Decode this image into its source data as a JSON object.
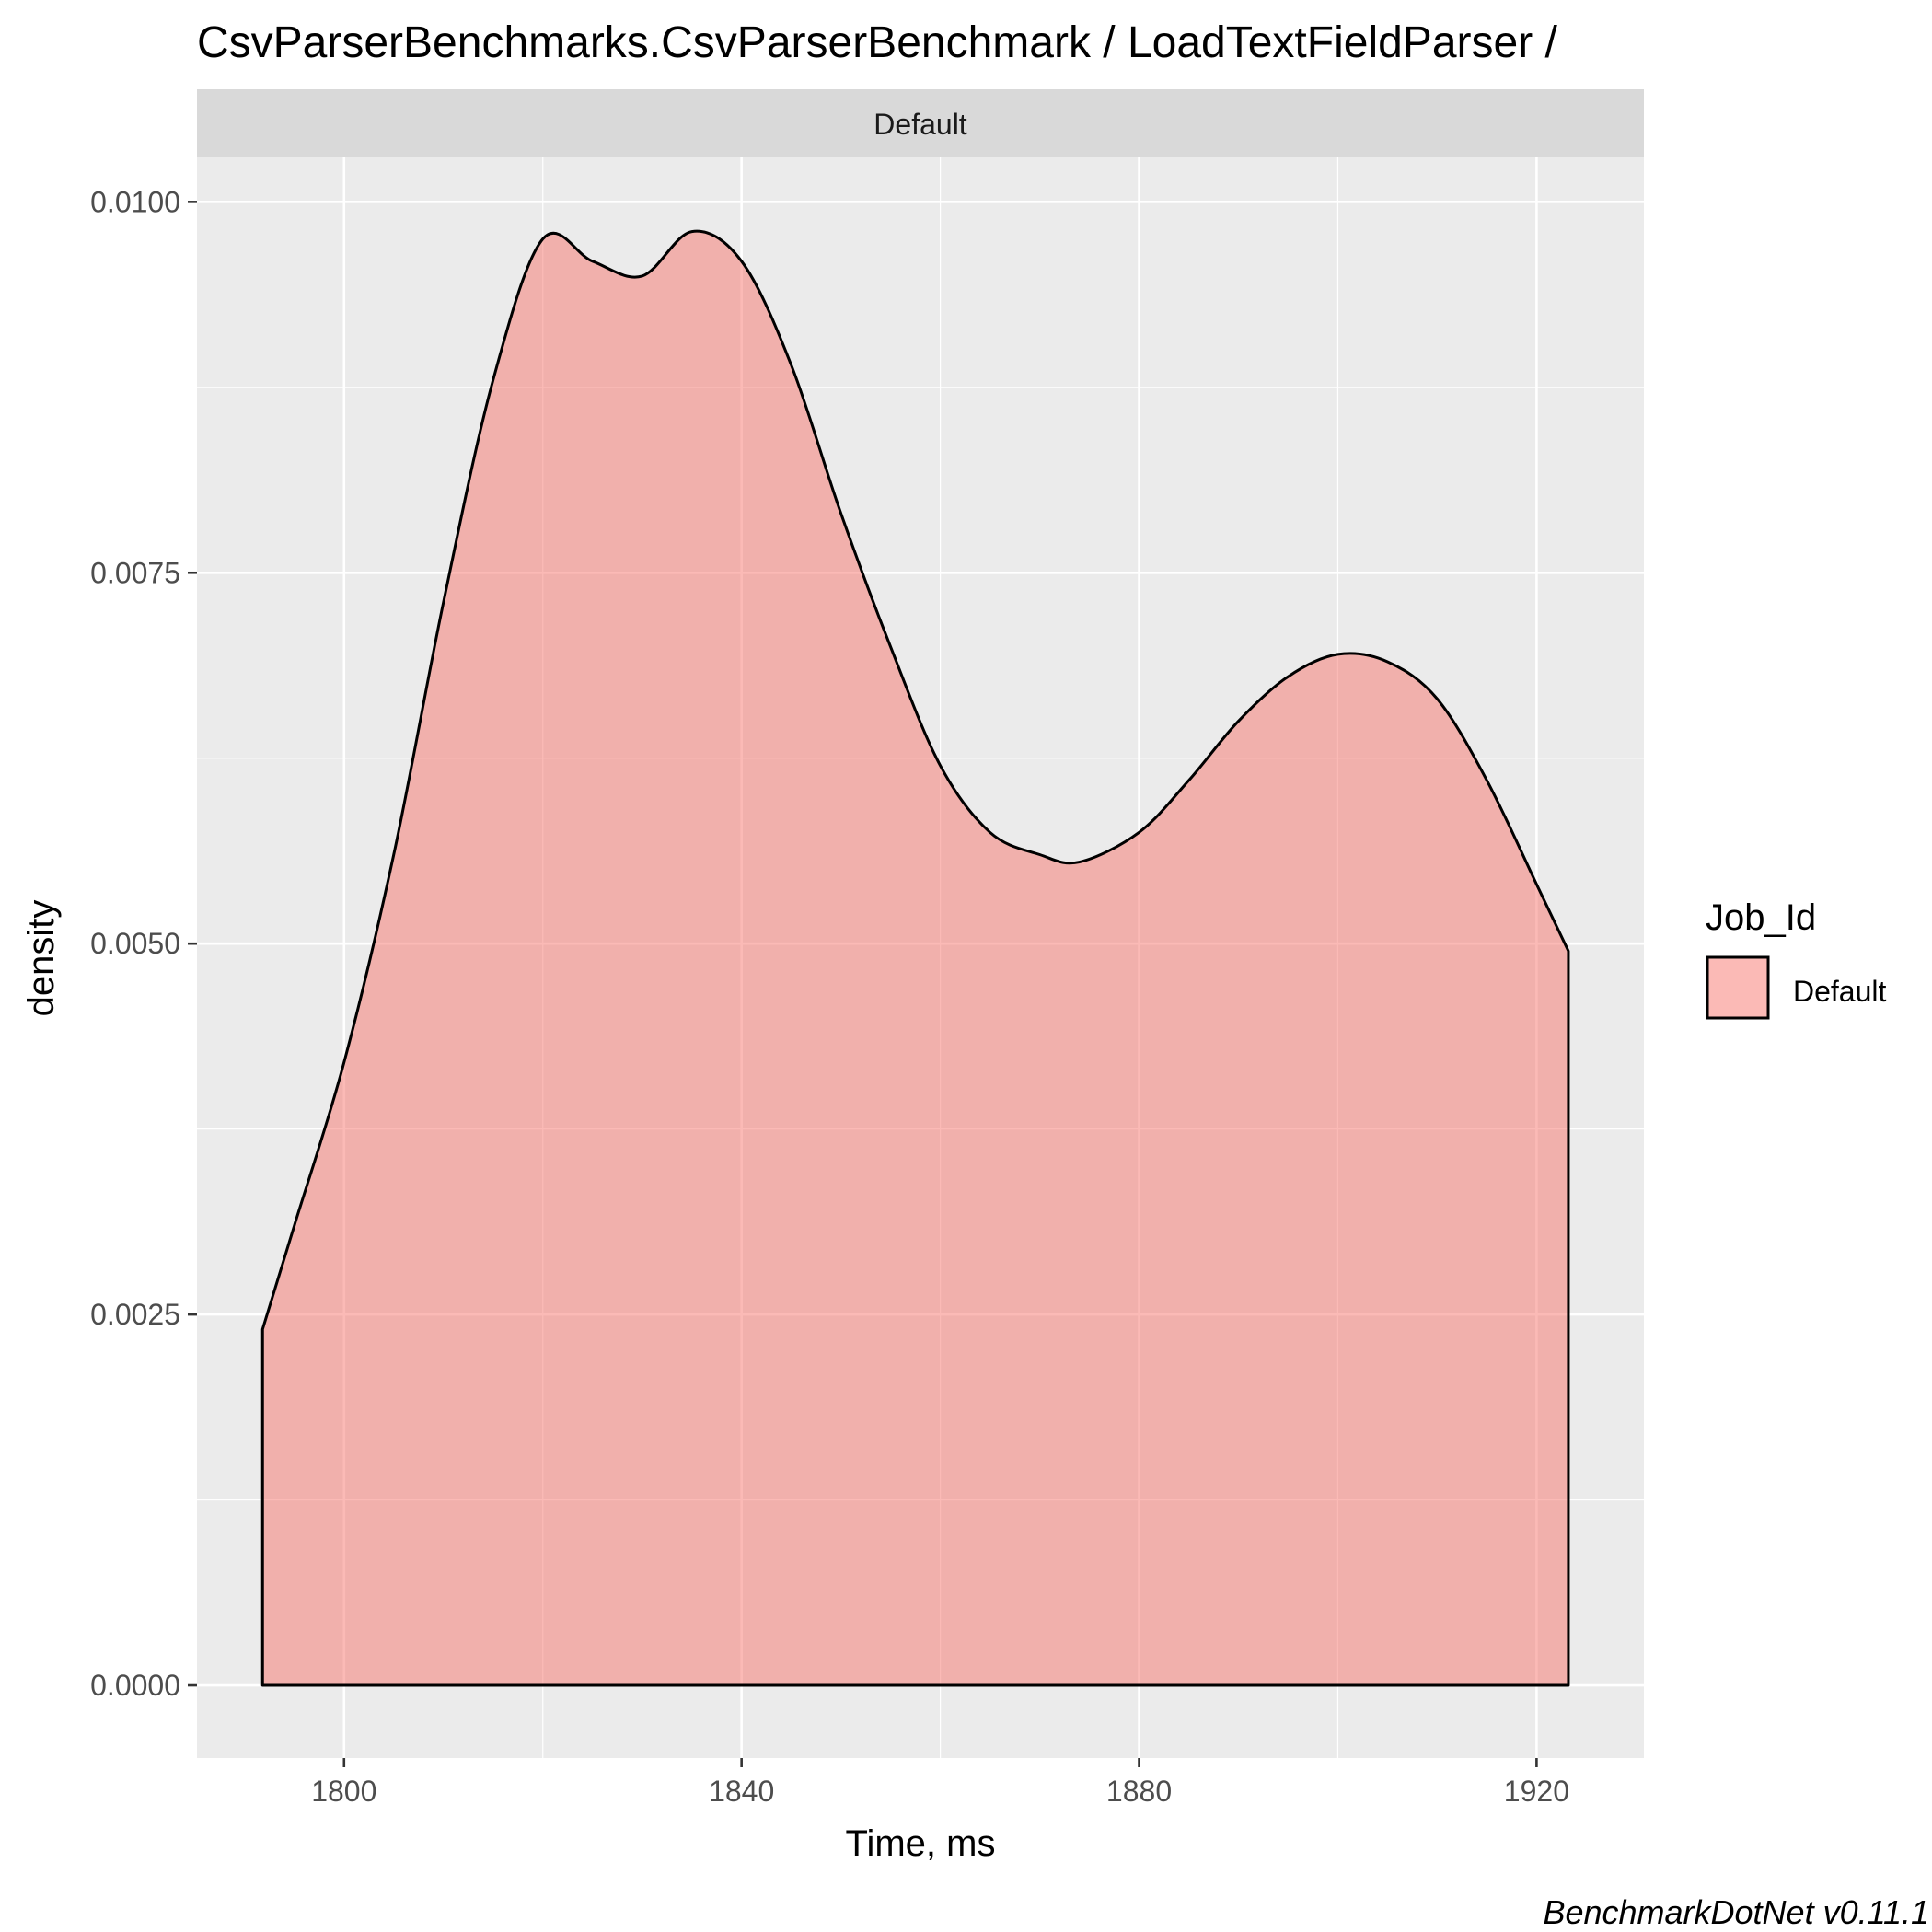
{
  "chart_data": {
    "type": "area",
    "title": "CsvParserBenchmarks.CsvParserBenchmark / LoadTextFieldParser /",
    "facet_label": "Default",
    "xlabel": "Time, ms",
    "ylabel": "density",
    "xlim": [
      1785.2,
      1930.8
    ],
    "ylim": [
      -0.00049,
      0.0103
    ],
    "x_ticks": [
      1800,
      1840,
      1880,
      1920
    ],
    "x_tick_labels": [
      "1800",
      "1840",
      "1880",
      "1920"
    ],
    "y_ticks": [
      0,
      0.0025,
      0.005,
      0.0075,
      0.01
    ],
    "y_tick_labels": [
      "0.0000",
      "0.0025",
      "0.0050",
      "0.0075",
      "0.0100"
    ],
    "grid": true,
    "legend": {
      "title": "Job_Id",
      "position": "right",
      "entries": [
        "Default"
      ]
    },
    "series": [
      {
        "name": "Default",
        "fill": "#F8766D",
        "fill_opacity": 0.5,
        "stroke": "#000000",
        "x": [
          1791.8,
          1795,
          1800,
          1805,
          1810,
          1815,
          1820,
          1825,
          1830,
          1835,
          1840,
          1845,
          1850,
          1855,
          1860,
          1865,
          1870,
          1874,
          1880,
          1885,
          1890,
          1895,
          1900,
          1905,
          1910,
          1915,
          1920,
          1923.2
        ],
        "y": [
          0.0024,
          0.0031,
          0.0042,
          0.0056,
          0.0073,
          0.0088,
          0.00975,
          0.0096,
          0.0095,
          0.0098,
          0.0096,
          0.0089,
          0.0079,
          0.007,
          0.0062,
          0.00575,
          0.0056,
          0.00555,
          0.00575,
          0.0061,
          0.0065,
          0.0068,
          0.00695,
          0.0069,
          0.00665,
          0.0061,
          0.0054,
          0.00495
        ]
      }
    ]
  },
  "caption": "BenchmarkDotNet v0.11.1",
  "colors": {
    "panel_bg": "#EBEBEB",
    "strip_bg": "#D9D9D9",
    "grid_major": "#FFFFFF",
    "area_fill": "#F8766D"
  }
}
